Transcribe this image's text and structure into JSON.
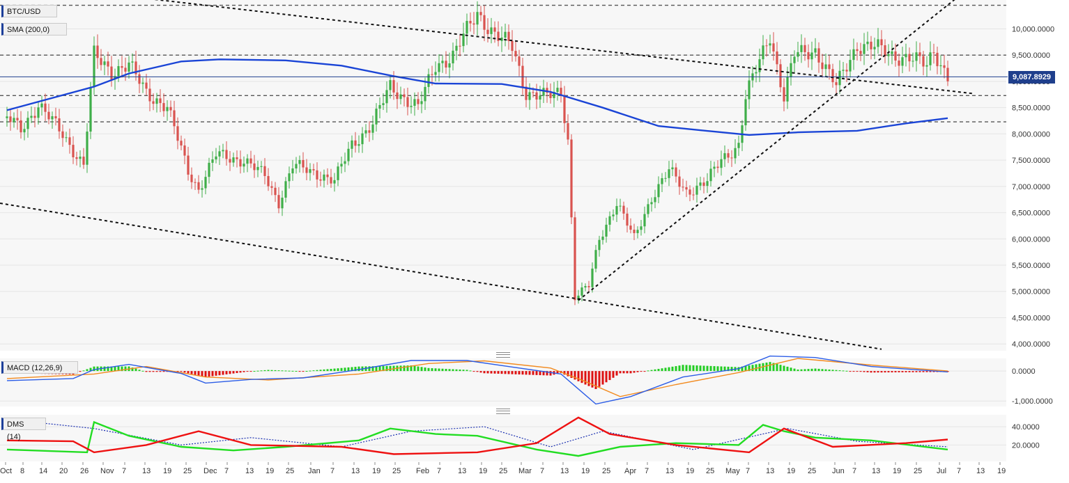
{
  "chart_data": [
    {
      "type": "candlestick",
      "symbol": "BTC/USD",
      "overlay_label": "SMA (200,0)",
      "last_price_label": "9,087.8929",
      "x_ticks": [
        "Oct",
        "8",
        "14",
        "20",
        "26",
        "Nov",
        "7",
        "13",
        "19",
        "25",
        "Dec",
        "7",
        "13",
        "19",
        "25",
        "Jan",
        "7",
        "13",
        "19",
        "25",
        "Feb",
        "7",
        "13",
        "19",
        "25",
        "Mar",
        "7",
        "13",
        "19",
        "25",
        "Apr",
        "7",
        "13",
        "19",
        "25",
        "May",
        "7",
        "13",
        "19",
        "25",
        "Jun",
        "7",
        "13",
        "19",
        "25",
        "Jul",
        "7",
        "13",
        "19"
      ],
      "y_ticks": [
        "4,000.0000",
        "4,500.0000",
        "5,000.0000",
        "5,500.0000",
        "6,000.0000",
        "6,500.0000",
        "7,000.0000",
        "7,500.0000",
        "8,000.0000",
        "8,500.0000",
        "9,000.0000",
        "9,500.0000",
        "10,000.0000"
      ],
      "y_tick_values": [
        4000,
        4500,
        5000,
        5500,
        6000,
        6500,
        7000,
        7500,
        8000,
        8500,
        9000,
        9500,
        10000
      ],
      "ylim": [
        3870,
        10550
      ],
      "price_keyframes": [
        {
          "date": "2019-10-01",
          "price": 8300
        },
        {
          "date": "2019-10-05",
          "price": 8100
        },
        {
          "date": "2019-10-10",
          "price": 8550
        },
        {
          "date": "2019-10-17",
          "price": 8000
        },
        {
          "date": "2019-10-23",
          "price": 7400
        },
        {
          "date": "2019-10-26",
          "price": 9500
        },
        {
          "date": "2019-10-31",
          "price": 9200
        },
        {
          "date": "2019-11-05",
          "price": 9300
        },
        {
          "date": "2019-11-10",
          "price": 8800
        },
        {
          "date": "2019-11-16",
          "price": 8500
        },
        {
          "date": "2019-11-22",
          "price": 7300
        },
        {
          "date": "2019-11-25",
          "price": 6950
        },
        {
          "date": "2019-11-30",
          "price": 7600
        },
        {
          "date": "2019-12-08",
          "price": 7500
        },
        {
          "date": "2019-12-14",
          "price": 7200
        },
        {
          "date": "2019-12-18",
          "price": 6700
        },
        {
          "date": "2019-12-22",
          "price": 7400
        },
        {
          "date": "2019-12-31",
          "price": 7200
        },
        {
          "date": "2020-01-03",
          "price": 7100
        },
        {
          "date": "2020-01-08",
          "price": 7800
        },
        {
          "date": "2020-01-14",
          "price": 8200
        },
        {
          "date": "2020-01-19",
          "price": 8900
        },
        {
          "date": "2020-01-27",
          "price": 8500
        },
        {
          "date": "2020-02-01",
          "price": 9300
        },
        {
          "date": "2020-02-06",
          "price": 9500
        },
        {
          "date": "2020-02-13",
          "price": 10300
        },
        {
          "date": "2020-02-18",
          "price": 9900
        },
        {
          "date": "2020-02-23",
          "price": 9650
        },
        {
          "date": "2020-02-27",
          "price": 8800
        },
        {
          "date": "2020-03-04",
          "price": 8700
        },
        {
          "date": "2020-03-08",
          "price": 8800
        },
        {
          "date": "2020-03-10",
          "price": 7900
        },
        {
          "date": "2020-03-12",
          "price": 4900
        },
        {
          "date": "2020-03-16",
          "price": 5100
        },
        {
          "date": "2020-03-19",
          "price": 6000
        },
        {
          "date": "2020-03-24",
          "price": 6700
        },
        {
          "date": "2020-03-29",
          "price": 6000
        },
        {
          "date": "2020-04-03",
          "price": 6800
        },
        {
          "date": "2020-04-08",
          "price": 7300
        },
        {
          "date": "2020-04-13",
          "price": 6900
        },
        {
          "date": "2020-04-19",
          "price": 7100
        },
        {
          "date": "2020-04-23",
          "price": 7500
        },
        {
          "date": "2020-04-28",
          "price": 7800
        },
        {
          "date": "2020-04-30",
          "price": 8700
        },
        {
          "date": "2020-05-07",
          "price": 9900
        },
        {
          "date": "2020-05-11",
          "price": 8700
        },
        {
          "date": "2020-05-14",
          "price": 9500
        },
        {
          "date": "2020-05-20",
          "price": 9600
        },
        {
          "date": "2020-05-26",
          "price": 8900
        },
        {
          "date": "2020-06-01",
          "price": 9700
        },
        {
          "date": "2020-06-06",
          "price": 9650
        },
        {
          "date": "2020-06-11",
          "price": 9500
        },
        {
          "date": "2020-06-16",
          "price": 9450
        },
        {
          "date": "2020-06-21",
          "price": 9300
        },
        {
          "date": "2020-06-23",
          "price": 9600
        },
        {
          "date": "2020-06-27",
          "price": 9087
        }
      ],
      "sma_200": [
        {
          "date": "2019-10-01",
          "value": 8450
        },
        {
          "date": "2019-10-26",
          "value": 8900
        },
        {
          "date": "2019-11-05",
          "value": 9150
        },
        {
          "date": "2019-11-20",
          "value": 9380
        },
        {
          "date": "2019-12-01",
          "value": 9420
        },
        {
          "date": "2019-12-20",
          "value": 9400
        },
        {
          "date": "2020-01-05",
          "value": 9300
        },
        {
          "date": "2020-01-20",
          "value": 9100
        },
        {
          "date": "2020-02-01",
          "value": 8960
        },
        {
          "date": "2020-02-20",
          "value": 8950
        },
        {
          "date": "2020-03-05",
          "value": 8800
        },
        {
          "date": "2020-03-20",
          "value": 8500
        },
        {
          "date": "2020-04-05",
          "value": 8150
        },
        {
          "date": "2020-04-20",
          "value": 8050
        },
        {
          "date": "2020-05-01",
          "value": 7980
        },
        {
          "date": "2020-05-15",
          "value": 8030
        },
        {
          "date": "2020-06-01",
          "value": 8060
        },
        {
          "date": "2020-06-15",
          "value": 8200
        },
        {
          "date": "2020-06-27",
          "value": 8300
        }
      ],
      "horizontal_levels": [
        10450,
        9500,
        8730,
        8230
      ],
      "current_price": 9087.8929,
      "trendlines": [
        {
          "from": {
            "date": "2019-09-29",
            "price": 10900
          },
          "to": {
            "date": "2020-07-04",
            "price": 8770
          }
        },
        {
          "from": {
            "date": "2019-09-29",
            "price": 6680
          },
          "to": {
            "date": "2020-06-08",
            "price": 3900
          }
        },
        {
          "from": {
            "date": "2020-03-13",
            "price": 4830
          },
          "to": {
            "date": "2020-06-29",
            "price": 10560
          }
        }
      ],
      "up_color": "#3fae49",
      "down_color": "#d9534f",
      "sma_color": "#1a44d6"
    },
    {
      "type": "histogram+line",
      "label": "MACD (12,26,9)",
      "y_ticks": [
        "0.0000",
        "-1,000.0000"
      ],
      "y_tick_values": [
        0,
        -1000
      ],
      "ylim": [
        -1180,
        420
      ],
      "macd": [
        {
          "date": "2019-10-01",
          "value": -320
        },
        {
          "date": "2019-10-20",
          "value": -250
        },
        {
          "date": "2019-10-26",
          "value": 50
        },
        {
          "date": "2019-11-05",
          "value": 220
        },
        {
          "date": "2019-11-20",
          "value": -80
        },
        {
          "date": "2019-11-27",
          "value": -400
        },
        {
          "date": "2019-12-10",
          "value": -280
        },
        {
          "date": "2019-12-25",
          "value": -230
        },
        {
          "date": "2020-01-10",
          "value": 50
        },
        {
          "date": "2020-01-25",
          "value": 350
        },
        {
          "date": "2020-02-10",
          "value": 350
        },
        {
          "date": "2020-02-25",
          "value": 100
        },
        {
          "date": "2020-03-08",
          "value": -100
        },
        {
          "date": "2020-03-12",
          "value": -500
        },
        {
          "date": "2020-03-18",
          "value": -1100
        },
        {
          "date": "2020-03-28",
          "value": -850
        },
        {
          "date": "2020-04-12",
          "value": -200
        },
        {
          "date": "2020-04-28",
          "value": 80
        },
        {
          "date": "2020-05-07",
          "value": 500
        },
        {
          "date": "2020-05-20",
          "value": 450
        },
        {
          "date": "2020-06-05",
          "value": 150
        },
        {
          "date": "2020-06-27",
          "value": -30
        }
      ],
      "signal": [
        {
          "date": "2019-10-01",
          "value": -250
        },
        {
          "date": "2019-10-26",
          "value": -100
        },
        {
          "date": "2019-11-10",
          "value": 150
        },
        {
          "date": "2019-11-27",
          "value": -200
        },
        {
          "date": "2019-12-15",
          "value": -300
        },
        {
          "date": "2020-01-10",
          "value": -100
        },
        {
          "date": "2020-01-30",
          "value": 250
        },
        {
          "date": "2020-02-15",
          "value": 340
        },
        {
          "date": "2020-03-05",
          "value": 100
        },
        {
          "date": "2020-03-15",
          "value": -350
        },
        {
          "date": "2020-03-25",
          "value": -850
        },
        {
          "date": "2020-04-10",
          "value": -450
        },
        {
          "date": "2020-04-28",
          "value": -50
        },
        {
          "date": "2020-05-15",
          "value": 420
        },
        {
          "date": "2020-06-05",
          "value": 200
        },
        {
          "date": "2020-06-27",
          "value": 0
        }
      ],
      "macd_color": "#2b5ce6",
      "signal_color": "#f28a1e",
      "hist_up_color": "#22cc22",
      "hist_down_color": "#dd1111"
    },
    {
      "type": "line",
      "label": "DMS (14)",
      "y_ticks": [
        "20.0000",
        "40.0000"
      ],
      "y_tick_values": [
        20,
        40
      ],
      "ylim": [
        2,
        53
      ],
      "di_plus": [
        {
          "date": "2019-10-01",
          "value": 15
        },
        {
          "date": "2019-10-24",
          "value": 12
        },
        {
          "date": "2019-10-26",
          "value": 45
        },
        {
          "date": "2019-11-05",
          "value": 30
        },
        {
          "date": "2019-11-20",
          "value": 18
        },
        {
          "date": "2019-12-05",
          "value": 14
        },
        {
          "date": "2019-12-20",
          "value": 18
        },
        {
          "date": "2020-01-10",
          "value": 25
        },
        {
          "date": "2020-01-19",
          "value": 38
        },
        {
          "date": "2020-02-01",
          "value": 32
        },
        {
          "date": "2020-02-13",
          "value": 30
        },
        {
          "date": "2020-03-01",
          "value": 15
        },
        {
          "date": "2020-03-13",
          "value": 8
        },
        {
          "date": "2020-03-25",
          "value": 18
        },
        {
          "date": "2020-04-10",
          "value": 22
        },
        {
          "date": "2020-04-28",
          "value": 20
        },
        {
          "date": "2020-05-05",
          "value": 42
        },
        {
          "date": "2020-05-11",
          "value": 35
        },
        {
          "date": "2020-05-20",
          "value": 28
        },
        {
          "date": "2020-06-05",
          "value": 25
        },
        {
          "date": "2020-06-27",
          "value": 15
        }
      ],
      "di_minus": [
        {
          "date": "2019-10-01",
          "value": 25
        },
        {
          "date": "2019-10-20",
          "value": 24
        },
        {
          "date": "2019-10-26",
          "value": 12
        },
        {
          "date": "2019-11-10",
          "value": 20
        },
        {
          "date": "2019-11-25",
          "value": 35
        },
        {
          "date": "2019-12-10",
          "value": 20
        },
        {
          "date": "2020-01-05",
          "value": 18
        },
        {
          "date": "2020-01-20",
          "value": 10
        },
        {
          "date": "2020-02-13",
          "value": 12
        },
        {
          "date": "2020-03-01",
          "value": 22
        },
        {
          "date": "2020-03-13",
          "value": 50
        },
        {
          "date": "2020-03-22",
          "value": 32
        },
        {
          "date": "2020-04-10",
          "value": 20
        },
        {
          "date": "2020-05-01",
          "value": 12
        },
        {
          "date": "2020-05-11",
          "value": 38
        },
        {
          "date": "2020-05-25",
          "value": 18
        },
        {
          "date": "2020-06-15",
          "value": 22
        },
        {
          "date": "2020-06-27",
          "value": 26
        }
      ],
      "adx": [
        {
          "date": "2019-10-01",
          "value": 48
        },
        {
          "date": "2019-10-26",
          "value": 38
        },
        {
          "date": "2019-11-20",
          "value": 20
        },
        {
          "date": "2019-12-10",
          "value": 28
        },
        {
          "date": "2020-01-05",
          "value": 18
        },
        {
          "date": "2020-01-25",
          "value": 35
        },
        {
          "date": "2020-02-15",
          "value": 40
        },
        {
          "date": "2020-03-05",
          "value": 18
        },
        {
          "date": "2020-03-20",
          "value": 35
        },
        {
          "date": "2020-04-15",
          "value": 15
        },
        {
          "date": "2020-05-12",
          "value": 38
        },
        {
          "date": "2020-06-01",
          "value": 24
        },
        {
          "date": "2020-06-27",
          "value": 18
        }
      ],
      "di_plus_color": "#22dd22",
      "di_minus_color": "#ee1111",
      "adx_color": "#1a2fb0"
    }
  ]
}
